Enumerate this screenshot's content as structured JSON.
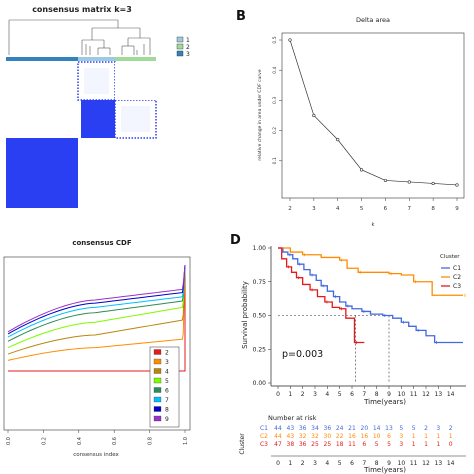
{
  "panels": {
    "A": {
      "title": "consensus matrix k=3",
      "legend": [
        {
          "label": "1",
          "color": "#9ecae1"
        },
        {
          "label": "2",
          "color": "#a1d99b"
        },
        {
          "label": "3",
          "color": "#3182bd"
        }
      ],
      "matrix_color": "#2b3ff2"
    },
    "B": {
      "letter": "B"
    },
    "C": {
      "letter": ""
    },
    "D": {
      "letter": "D"
    }
  },
  "chart_data": [
    {
      "panel": "B",
      "type": "line",
      "title": "Delta area",
      "xlabel": "k",
      "ylabel": "relative change in area under CDF curve",
      "x": [
        2,
        3,
        4,
        5,
        6,
        7,
        8,
        9
      ],
      "y": [
        0.5,
        0.25,
        0.17,
        0.07,
        0.035,
        0.03,
        0.025,
        0.02
      ],
      "xlim": [
        2,
        9
      ],
      "ylim": [
        0,
        0.5
      ],
      "yticks": [
        "0.1",
        "0.2",
        "0.3",
        "0.4",
        "0.5"
      ],
      "xticks": [
        "2",
        "3",
        "4",
        "5",
        "6",
        "7",
        "8",
        "9"
      ]
    },
    {
      "panel": "C",
      "type": "line",
      "title": "consensus CDF",
      "xlabel": "consensus index",
      "xlim": [
        0,
        1
      ],
      "ylim": [
        0,
        1
      ],
      "xticks": [
        "0.0",
        "0.2",
        "0.4",
        "0.6",
        "0.8",
        "1.0"
      ],
      "series": [
        {
          "name": "2",
          "color": "#e41a1c",
          "y_start": 0.0,
          "y_mid": 0.0,
          "y_end": 0.0
        },
        {
          "name": "3",
          "color": "#ff8c00",
          "y_start": 0.1,
          "y_mid": 0.22,
          "y_end": 0.3
        },
        {
          "name": "4",
          "color": "#b8860b",
          "y_start": 0.16,
          "y_mid": 0.34,
          "y_end": 0.48
        },
        {
          "name": "5",
          "color": "#7cfc00",
          "y_start": 0.22,
          "y_mid": 0.46,
          "y_end": 0.6
        },
        {
          "name": "6",
          "color": "#2e8b57",
          "y_start": 0.28,
          "y_mid": 0.55,
          "y_end": 0.66
        },
        {
          "name": "7",
          "color": "#00bfff",
          "y_start": 0.32,
          "y_mid": 0.6,
          "y_end": 0.7
        },
        {
          "name": "8",
          "color": "#0000cd",
          "y_start": 0.35,
          "y_mid": 0.64,
          "y_end": 0.74
        },
        {
          "name": "9",
          "color": "#9932cc",
          "y_start": 0.37,
          "y_mid": 0.67,
          "y_end": 0.77
        }
      ]
    },
    {
      "panel": "D",
      "type": "line",
      "xlabel": "Time(years)",
      "ylabel": "Survival probability",
      "xlim": [
        0,
        15
      ],
      "ylim": [
        0,
        1
      ],
      "xticks": [
        "0",
        "1",
        "2",
        "3",
        "4",
        "5",
        "6",
        "7",
        "8",
        "9",
        "10",
        "11",
        "12",
        "13",
        "14"
      ],
      "yticks": [
        "0.00",
        "0.25",
        "0.50",
        "0.75",
        "1.00"
      ],
      "pvalue": "p=0.003",
      "legend_title": "Cluster",
      "median_line_y": 0.5,
      "median_times": [
        6.3,
        9.0
      ],
      "series": [
        {
          "name": "C1",
          "color": "#4169e1",
          "steps": [
            [
              0,
              1.0
            ],
            [
              0.4,
              0.97
            ],
            [
              0.8,
              0.95
            ],
            [
              1.2,
              0.92
            ],
            [
              1.6,
              0.88
            ],
            [
              2.1,
              0.84
            ],
            [
              2.6,
              0.8
            ],
            [
              3.1,
              0.76
            ],
            [
              3.5,
              0.72
            ],
            [
              4.0,
              0.68
            ],
            [
              4.5,
              0.64
            ],
            [
              5.0,
              0.6
            ],
            [
              5.5,
              0.57
            ],
            [
              6.0,
              0.55
            ],
            [
              6.8,
              0.53
            ],
            [
              7.5,
              0.51
            ],
            [
              8.5,
              0.5
            ],
            [
              9.3,
              0.48
            ],
            [
              10.0,
              0.45
            ],
            [
              10.6,
              0.42
            ],
            [
              11.2,
              0.39
            ],
            [
              12.0,
              0.35
            ],
            [
              12.7,
              0.3
            ],
            [
              15.0,
              0.3
            ]
          ]
        },
        {
          "name": "C2",
          "color": "#ff8c00",
          "steps": [
            [
              0,
              1.0
            ],
            [
              1.0,
              0.97
            ],
            [
              2.0,
              0.95
            ],
            [
              3.5,
              0.93
            ],
            [
              5.0,
              0.91
            ],
            [
              5.6,
              0.85
            ],
            [
              6.5,
              0.82
            ],
            [
              8.0,
              0.82
            ],
            [
              9.0,
              0.81
            ],
            [
              10.0,
              0.8
            ],
            [
              11.0,
              0.75
            ],
            [
              12.5,
              0.65
            ],
            [
              15.0,
              0.65
            ]
          ]
        },
        {
          "name": "C3",
          "color": "#e41a1c",
          "steps": [
            [
              0,
              1.0
            ],
            [
              0.3,
              0.92
            ],
            [
              0.7,
              0.86
            ],
            [
              1.1,
              0.82
            ],
            [
              1.5,
              0.78
            ],
            [
              2.0,
              0.73
            ],
            [
              2.6,
              0.69
            ],
            [
              3.2,
              0.64
            ],
            [
              3.8,
              0.6
            ],
            [
              4.4,
              0.56
            ],
            [
              5.0,
              0.55
            ],
            [
              5.5,
              0.48
            ],
            [
              6.2,
              0.3
            ],
            [
              7.0,
              0.3
            ]
          ]
        }
      ],
      "risk_table": {
        "title": "Number at risk",
        "ylabel": "Cluster",
        "rows": [
          {
            "name": "C1",
            "color": "#4169e1",
            "values": [
              "44",
              "43",
              "36",
              "34",
              "36",
              "24",
              "21",
              "20",
              "14",
              "13",
              "5",
              "5",
              "2",
              "3",
              "2"
            ]
          },
          {
            "name": "C2",
            "color": "#ff8c00",
            "values": [
              "44",
              "43",
              "32",
              "32",
              "30",
              "22",
              "16",
              "16",
              "10",
              "6",
              "3",
              "1",
              "1",
              "1",
              "1"
            ]
          },
          {
            "name": "C3",
            "color": "#e41a1c",
            "values": [
              "47",
              "38",
              "36",
              "25",
              "25",
              "18",
              "11",
              "6",
              "5",
              "5",
              "3",
              "1",
              "1",
              "1",
              "0"
            ]
          }
        ]
      }
    }
  ]
}
